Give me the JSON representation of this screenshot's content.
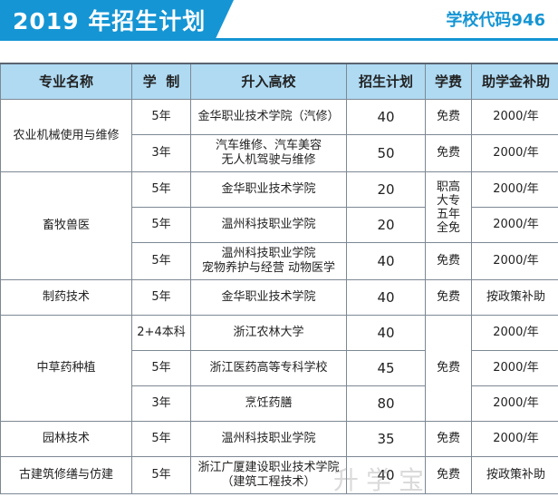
{
  "header": {
    "title": "2019 年招生计划",
    "school_code": "学校代码946"
  },
  "table": {
    "columns": [
      "专业名称",
      "学  制",
      "升入高校",
      "招生计划",
      "学费",
      "助学金补助"
    ],
    "rows": [
      {
        "major": "农业机械使用与维修",
        "years": "5年",
        "university": "金华职业技术学院（汽修）",
        "plan": "40",
        "fee": "免费",
        "aid": "2000/年"
      },
      {
        "years": "3年",
        "university": "汽车维修、汽车美容\n无人机驾驶与维修",
        "plan": "50",
        "fee": "免费",
        "aid": "2000/年"
      },
      {
        "major": "畜牧兽医",
        "years": "5年",
        "university": "金华职业技术学院",
        "plan": "20",
        "fee": "职高\n大专\n五年\n全免",
        "aid": "2000/年"
      },
      {
        "years": "5年",
        "university": "温州科技职业学院",
        "plan": "20",
        "aid": "2000/年"
      },
      {
        "years": "5年",
        "university": "温州科技职业学院\n宠物养护与经营 动物医学",
        "plan": "40",
        "fee": "免费",
        "aid": "2000/年"
      },
      {
        "major": "制药技术",
        "years": "5年",
        "university": "金华职业技术学院",
        "plan": "40",
        "fee": "免费",
        "aid": "按政策补助"
      },
      {
        "major": "中草药种植",
        "years": "2+4本科",
        "university": "浙江农林大学",
        "plan": "40",
        "fee": "免费",
        "aid": "2000/年"
      },
      {
        "years": "5年",
        "university": "浙江医药高等专科学校",
        "plan": "45",
        "aid": "2000/年"
      },
      {
        "years": "3年",
        "university": "烹饪药膳",
        "plan": "80",
        "aid": "2000/年"
      },
      {
        "major": "园林技术",
        "years": "5年",
        "university": "温州科技职业学院",
        "plan": "35",
        "fee": "免费",
        "aid": "2000/年"
      },
      {
        "major": "古建筑修缮与仿建",
        "years": "5年",
        "university": "浙江广厦建设职业技术学院\n（建筑工程技术）",
        "plan": "40",
        "fee": "免费",
        "aid": "按政策补助"
      }
    ]
  },
  "watermark": "升学宝"
}
